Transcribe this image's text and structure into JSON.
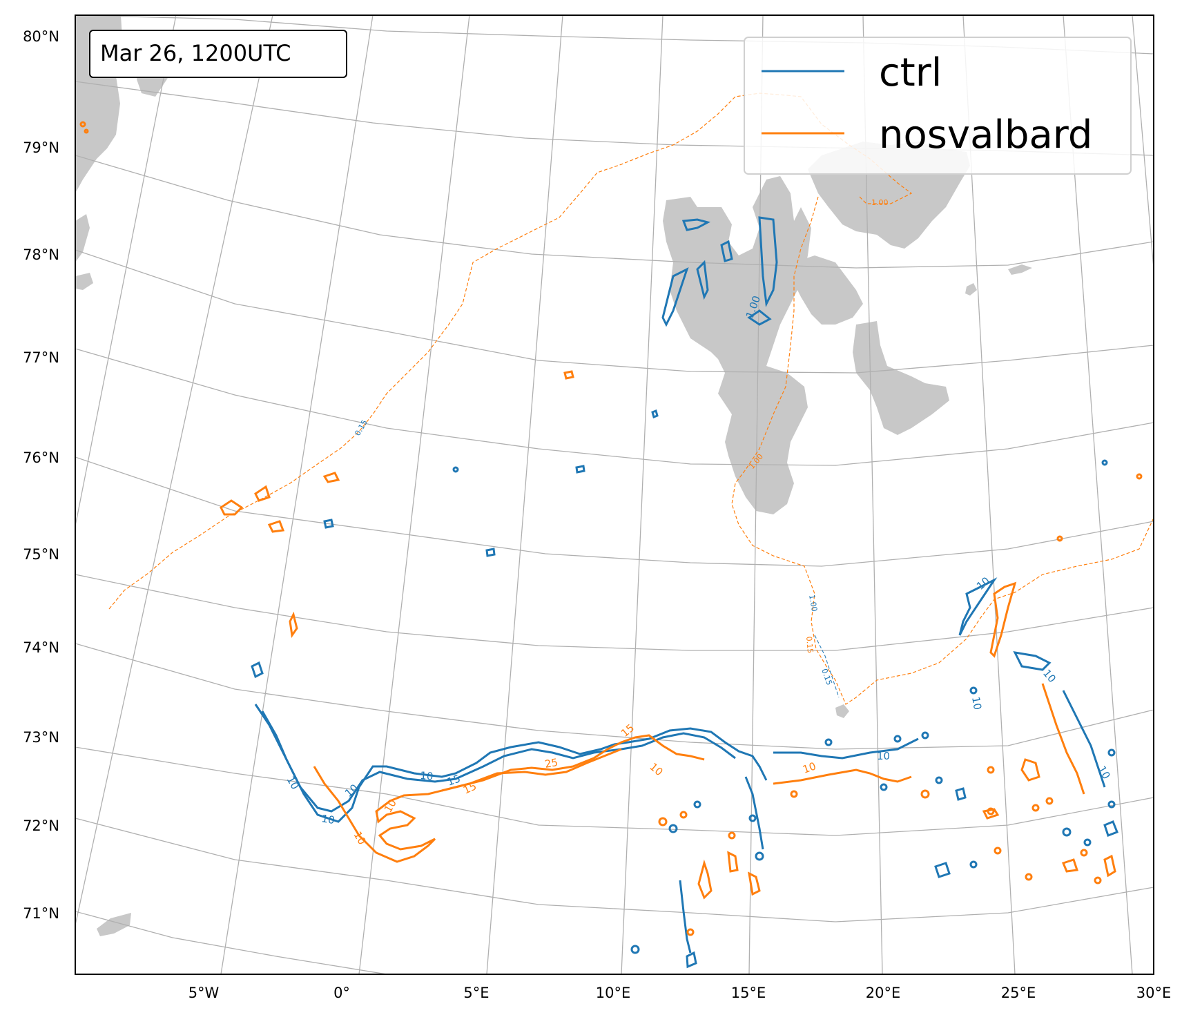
{
  "map": {
    "timestamp": "Mar 26, 1200UTC",
    "lat_labels": [
      "80°N",
      "79°N",
      "78°N",
      "77°N",
      "76°N",
      "75°N",
      "74°N",
      "73°N",
      "72°N",
      "71°N"
    ],
    "lon_labels": [
      "5°W",
      "0°",
      "5°E",
      "10°E",
      "15°E",
      "20°E",
      "25°E",
      "30°E"
    ],
    "legend": [
      {
        "name": "ctrl",
        "color": "#1f77b4"
      },
      {
        "name": "nosvalbard",
        "color": "#ff7f0e"
      }
    ],
    "contour_labels": {
      "ctrl": [
        "10",
        "10",
        "10",
        "15",
        "10",
        "10",
        "10",
        "10",
        "10",
        "10",
        "1.00",
        "0.15",
        "1.00"
      ],
      "nosvalbard": [
        "10",
        "10",
        "15",
        "25",
        "15",
        "10",
        "10",
        "1.00",
        "0.15",
        "1.00",
        "0.15"
      ]
    },
    "colors": {
      "land": "#c8c8c8",
      "grid": "#b0b0b0",
      "ctrl": "#1f77b4",
      "nosvalbard": "#ff7f0e"
    }
  }
}
